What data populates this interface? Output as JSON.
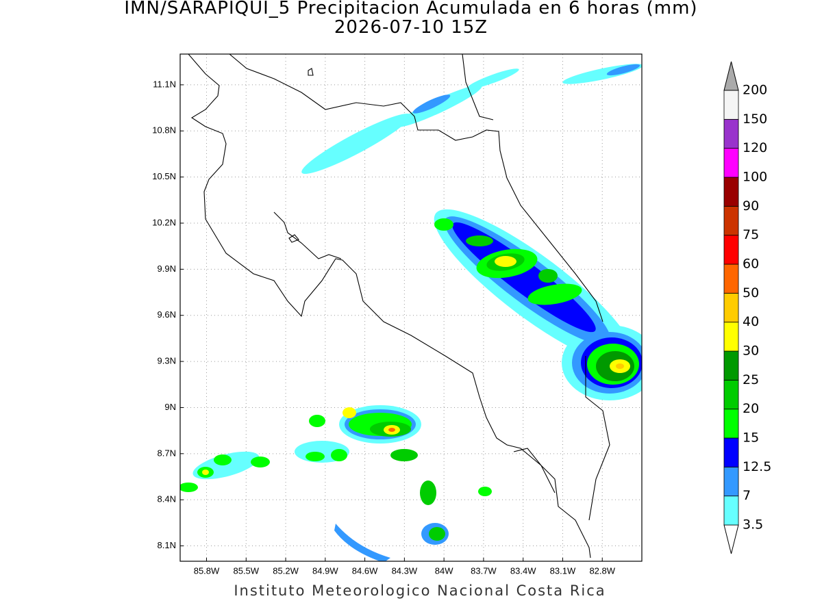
{
  "title": "IMN/SARAPIQUI_5 Precipitacion Acumulada en 6 horas (mm)",
  "subtitle": "2026-07-10 15Z",
  "map": {
    "xlim": [
      -86.0,
      -82.5
    ],
    "ylim": [
      8.0,
      11.3
    ],
    "xticks": [
      {
        "value": -85.8,
        "label": "85.8W"
      },
      {
        "value": -85.5,
        "label": "85.5W"
      },
      {
        "value": -85.2,
        "label": "85.2W"
      },
      {
        "value": -84.9,
        "label": "84.9W"
      },
      {
        "value": -84.6,
        "label": "84.6W"
      },
      {
        "value": -84.3,
        "label": "84.3W"
      },
      {
        "value": -84.0,
        "label": "84W"
      },
      {
        "value": -83.7,
        "label": "83.7W"
      },
      {
        "value": -83.4,
        "label": "83.4W"
      },
      {
        "value": -83.1,
        "label": "83.1W"
      },
      {
        "value": -82.8,
        "label": "82.8W"
      }
    ],
    "yticks": [
      {
        "value": 8.1,
        "label": "8.1N"
      },
      {
        "value": 8.4,
        "label": "8.4N"
      },
      {
        "value": 8.7,
        "label": "8.7N"
      },
      {
        "value": 9.0,
        "label": "9N"
      },
      {
        "value": 9.3,
        "label": "9.3N"
      },
      {
        "value": 9.6,
        "label": "9.6N"
      },
      {
        "value": 9.9,
        "label": "9.9N"
      },
      {
        "value": 10.2,
        "label": "10.2N"
      },
      {
        "value": 10.5,
        "label": "10.5N"
      },
      {
        "value": 10.8,
        "label": "10.8N"
      },
      {
        "value": 11.1,
        "label": "11.1N"
      }
    ],
    "grid": true
  },
  "colorbar": {
    "levels": [
      3.5,
      7,
      12.5,
      15,
      20,
      25,
      30,
      40,
      50,
      60,
      75,
      90,
      100,
      120,
      150,
      200
    ],
    "colors": [
      "#ffffff",
      "#66ffff",
      "#3399ff",
      "#0000ff",
      "#00ff00",
      "#00cc00",
      "#009900",
      "#ffff00",
      "#ffcc00",
      "#ff6600",
      "#ff0000",
      "#cc3300",
      "#990000",
      "#ff00ff",
      "#9933cc",
      "#f5f5f5",
      "#aaaaaa"
    ]
  },
  "footer": "Instituto Meteorologico Nacional Costa Rica"
}
